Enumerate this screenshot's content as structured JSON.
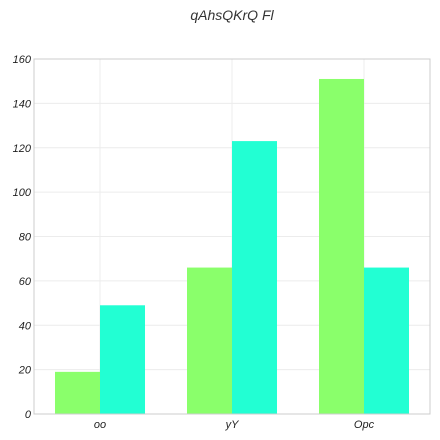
{
  "chart_data": {
    "type": "bar",
    "title": "qAhsQKrQ  Fl",
    "xlabel": "",
    "ylabel": "",
    "categories": [
      "oo",
      "yY",
      "Opc"
    ],
    "series": [
      {
        "color": "#8aff6b",
        "values": [
          19,
          66,
          151
        ]
      },
      {
        "color": "#22ffd3",
        "values": [
          49,
          123,
          66
        ]
      }
    ],
    "ylim": [
      0,
      160
    ],
    "yticks": [
      0,
      20,
      40,
      60,
      80,
      100,
      120,
      140,
      160
    ],
    "grid": true,
    "legend": "none"
  }
}
